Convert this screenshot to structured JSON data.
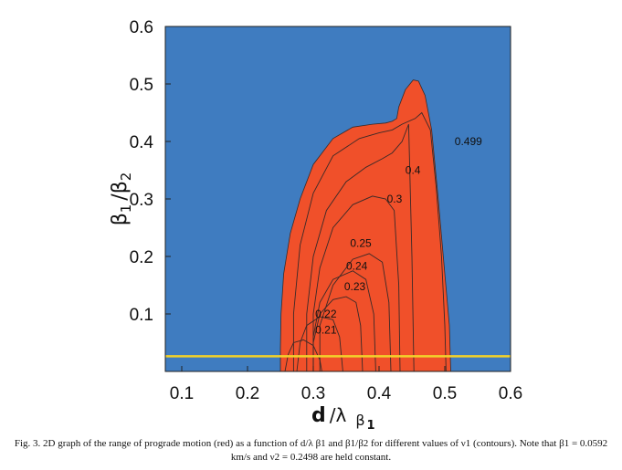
{
  "chart_data": {
    "type": "area",
    "title": "",
    "xlabel": "d /λ β₁",
    "ylabel": "β₁ /β₂",
    "xlim": [
      0.075,
      0.6
    ],
    "ylim": [
      0.0,
      0.6
    ],
    "xticks": [
      "0.1",
      "0.2",
      "0.3",
      "0.4",
      "0.5",
      "0.6"
    ],
    "yticks": [
      "0.1",
      "0.2",
      "0.3",
      "0.4",
      "0.5",
      "0.6"
    ],
    "grid": false,
    "colors": {
      "background": "#3f7cc0",
      "region": "#f0502a",
      "contour": "#3a2a28",
      "baseline": "#f2d12a",
      "frame": "#222222"
    },
    "region_boundary": [
      [
        0.25,
        0.0
      ],
      [
        0.25,
        0.04
      ],
      [
        0.251,
        0.1
      ],
      [
        0.255,
        0.17
      ],
      [
        0.265,
        0.24
      ],
      [
        0.28,
        0.3
      ],
      [
        0.3,
        0.36
      ],
      [
        0.33,
        0.405
      ],
      [
        0.36,
        0.425
      ],
      [
        0.39,
        0.43
      ],
      [
        0.41,
        0.432
      ],
      [
        0.42,
        0.435
      ],
      [
        0.427,
        0.44
      ],
      [
        0.43,
        0.46
      ],
      [
        0.44,
        0.49
      ],
      [
        0.452,
        0.507
      ],
      [
        0.46,
        0.505
      ],
      [
        0.47,
        0.48
      ],
      [
        0.48,
        0.42
      ],
      [
        0.49,
        0.3
      ],
      [
        0.5,
        0.17
      ],
      [
        0.507,
        0.08
      ],
      [
        0.509,
        0.0
      ]
    ],
    "contours": [
      {
        "label": "0.499",
        "points": [
          [
            0.27,
            0.0
          ],
          [
            0.27,
            0.1
          ],
          [
            0.28,
            0.22
          ],
          [
            0.3,
            0.31
          ],
          [
            0.33,
            0.375
          ],
          [
            0.37,
            0.405
          ],
          [
            0.4,
            0.415
          ],
          [
            0.42,
            0.42
          ],
          [
            0.435,
            0.43
          ],
          [
            0.455,
            0.44
          ],
          [
            0.465,
            0.45
          ],
          [
            0.478,
            0.42
          ],
          [
            0.487,
            0.32
          ],
          [
            0.495,
            0.2
          ],
          [
            0.5,
            0.08
          ],
          [
            0.502,
            0.0
          ]
        ]
      },
      {
        "label": "0.4",
        "points": [
          [
            0.29,
            0.0
          ],
          [
            0.29,
            0.1
          ],
          [
            0.3,
            0.2
          ],
          [
            0.32,
            0.28
          ],
          [
            0.35,
            0.33
          ],
          [
            0.38,
            0.355
          ],
          [
            0.405,
            0.37
          ],
          [
            0.42,
            0.38
          ],
          [
            0.435,
            0.4
          ],
          [
            0.445,
            0.43
          ],
          [
            0.45,
            0.2
          ],
          [
            0.453,
            0.0
          ]
        ]
      },
      {
        "label": "0.3",
        "points": [
          [
            0.3,
            0.0
          ],
          [
            0.3,
            0.1
          ],
          [
            0.31,
            0.18
          ],
          [
            0.33,
            0.25
          ],
          [
            0.36,
            0.29
          ],
          [
            0.39,
            0.305
          ],
          [
            0.41,
            0.3
          ],
          [
            0.423,
            0.28
          ],
          [
            0.43,
            0.15
          ],
          [
            0.432,
            0.0
          ]
        ]
      },
      {
        "label": "0.25",
        "points": [
          [
            0.31,
            0.0
          ],
          [
            0.31,
            0.08
          ],
          [
            0.33,
            0.15
          ],
          [
            0.36,
            0.195
          ],
          [
            0.385,
            0.205
          ],
          [
            0.405,
            0.19
          ],
          [
            0.415,
            0.12
          ],
          [
            0.418,
            0.0
          ]
        ]
      },
      {
        "label": "0.24",
        "points": [
          [
            0.3,
            0.0
          ],
          [
            0.3,
            0.06
          ],
          [
            0.31,
            0.12
          ],
          [
            0.33,
            0.16
          ],
          [
            0.36,
            0.175
          ],
          [
            0.38,
            0.16
          ],
          [
            0.392,
            0.1
          ],
          [
            0.395,
            0.0
          ]
        ]
      },
      {
        "label": "0.23",
        "points": [
          [
            0.3,
            0.0
          ],
          [
            0.3,
            0.05
          ],
          [
            0.31,
            0.1
          ],
          [
            0.33,
            0.125
          ],
          [
            0.35,
            0.13
          ],
          [
            0.365,
            0.12
          ],
          [
            0.372,
            0.08
          ],
          [
            0.375,
            0.0
          ]
        ]
      },
      {
        "label": "0.22",
        "points": [
          [
            0.275,
            0.0
          ],
          [
            0.28,
            0.05
          ],
          [
            0.29,
            0.08
          ],
          [
            0.31,
            0.095
          ],
          [
            0.33,
            0.09
          ],
          [
            0.34,
            0.06
          ],
          [
            0.345,
            0.0
          ]
        ]
      },
      {
        "label": "0.21",
        "points": [
          [
            0.257,
            0.0
          ],
          [
            0.262,
            0.03
          ],
          [
            0.27,
            0.05
          ],
          [
            0.285,
            0.055
          ],
          [
            0.3,
            0.045
          ],
          [
            0.31,
            0.02
          ],
          [
            0.313,
            0.0
          ]
        ]
      }
    ],
    "contour_labels": [
      {
        "text": "0.499",
        "x": 0.515,
        "y": 0.4
      },
      {
        "text": "0.4",
        "x": 0.44,
        "y": 0.35
      },
      {
        "text": "0.3",
        "x": 0.412,
        "y": 0.3
      },
      {
        "text": "0.25",
        "x": 0.356,
        "y": 0.223
      },
      {
        "text": "0.24",
        "x": 0.35,
        "y": 0.183
      },
      {
        "text": "0.23",
        "x": 0.347,
        "y": 0.148
      },
      {
        "text": "0.22",
        "x": 0.303,
        "y": 0.1
      },
      {
        "text": "0.21",
        "x": 0.303,
        "y": 0.072
      }
    ],
    "baseline_y": 0.0263
  },
  "caption": "Fig. 3. 2D graph of the range of prograde motion (red) as a function of d/λ β1 and β1/β2 for different values of ν1 (contours). Note that β1 = 0.0592 km/s and ν2 = 0.2498 are held constant."
}
